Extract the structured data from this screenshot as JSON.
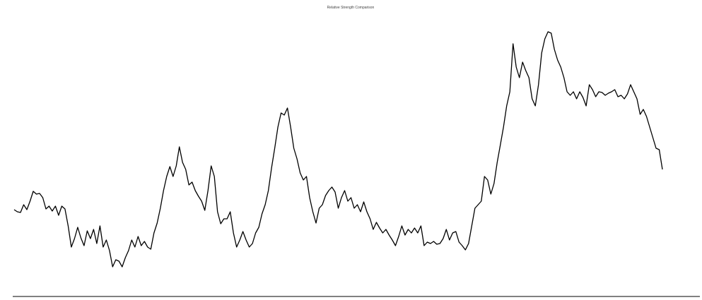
{
  "chart_data": {
    "type": "line",
    "title": "Relative Strength Comparison",
    "color": "#000000",
    "ylim": [
      0,
      420
    ],
    "values": [
      123,
      120,
      119,
      130,
      123,
      135,
      149,
      145,
      146,
      140,
      124,
      128,
      121,
      128,
      115,
      128,
      124,
      100,
      70,
      82,
      98,
      83,
      72,
      93,
      82,
      95,
      75,
      100,
      70,
      80,
      65,
      42,
      52,
      50,
      42,
      55,
      65,
      80,
      70,
      85,
      72,
      78,
      70,
      67,
      90,
      104,
      125,
      150,
      170,
      184,
      170,
      185,
      212,
      190,
      180,
      158,
      162,
      150,
      142,
      135,
      122,
      150,
      185,
      170,
      120,
      103,
      110,
      110,
      120,
      90,
      70,
      80,
      92,
      80,
      70,
      75,
      90,
      98,
      117,
      130,
      150,
      182,
      210,
      240,
      260,
      257,
      267,
      240,
      210,
      195,
      175,
      165,
      170,
      140,
      120,
      104,
      125,
      130,
      143,
      150,
      155,
      148,
      125,
      140,
      150,
      135,
      140,
      125,
      130,
      120,
      134,
      120,
      110,
      95,
      105,
      97,
      90,
      95,
      87,
      80,
      72,
      85,
      100,
      87,
      95,
      90,
      97,
      90,
      100,
      72,
      77,
      75,
      78,
      74,
      75,
      82,
      95,
      80,
      90,
      92,
      77,
      72,
      66,
      75,
      100,
      125,
      130,
      135,
      170,
      165,
      145,
      160,
      190,
      215,
      240,
      270,
      290,
      358,
      325,
      310,
      332,
      320,
      310,
      280,
      270,
      300,
      345,
      365,
      375,
      373,
      350,
      335,
      325,
      310,
      290,
      285,
      290,
      280,
      290,
      282,
      270,
      300,
      293,
      283,
      290,
      289,
      285,
      288,
      290,
      293,
      283,
      285,
      280,
      287,
      300,
      290,
      280,
      258,
      265,
      255,
      240,
      225,
      210,
      208,
      180
    ]
  }
}
